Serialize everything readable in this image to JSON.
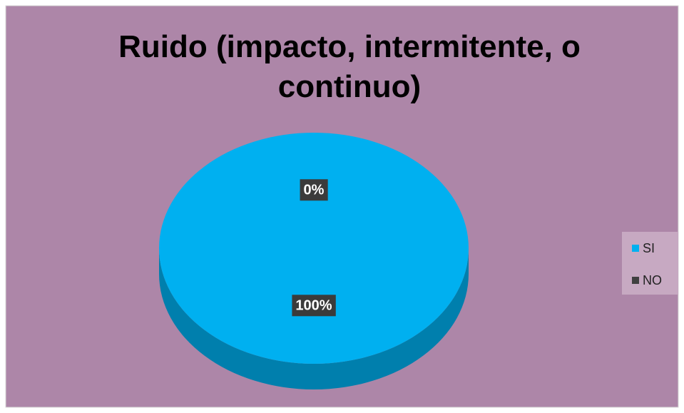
{
  "chart_data": {
    "type": "pie",
    "title": "Ruido (impacto, intermitente, o continuo)",
    "categories": [
      "SI",
      "NO"
    ],
    "values": [
      100,
      0
    ],
    "value_labels": [
      "100%",
      "0%"
    ],
    "colors": [
      "#00B0F0",
      "#404040"
    ],
    "legend": "right"
  }
}
